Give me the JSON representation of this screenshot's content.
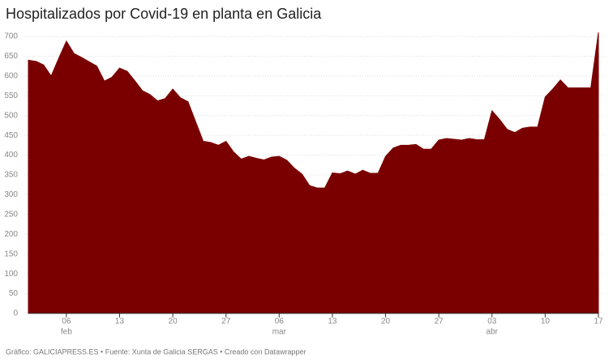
{
  "chart_data": {
    "type": "area",
    "title": "Hospitalizados por Covid-19 en planta en Galicia",
    "footer": "Gráfico: GALICIAPRESS.ES • Fuente: Xunta de Galicia SERGAS • Creado con Datawrapper",
    "color": "#7a0000",
    "categories": [
      null,
      null,
      null,
      null,
      null,
      "06",
      null,
      null,
      null,
      null,
      null,
      null,
      "13",
      null,
      null,
      null,
      null,
      null,
      null,
      "20",
      null,
      null,
      null,
      null,
      null,
      null,
      "27",
      null,
      null,
      null,
      null,
      null,
      null,
      "06",
      null,
      null,
      null,
      null,
      null,
      null,
      "13",
      null,
      null,
      null,
      null,
      null,
      null,
      "20",
      null,
      null,
      null,
      null,
      null,
      null,
      "27",
      null,
      null,
      null,
      null,
      null,
      null,
      "03",
      null,
      null,
      null,
      null,
      null,
      null,
      "10",
      null,
      null,
      null,
      null,
      null,
      null,
      "17"
    ],
    "months": [
      null,
      null,
      null,
      null,
      null,
      "feb",
      null,
      null,
      null,
      null,
      null,
      null,
      null,
      null,
      null,
      null,
      null,
      null,
      null,
      null,
      null,
      null,
      null,
      null,
      null,
      null,
      null,
      null,
      null,
      null,
      null,
      null,
      null,
      "mar",
      null,
      null,
      null,
      null,
      null,
      null,
      null,
      null,
      null,
      null,
      null,
      null,
      null,
      null,
      null,
      null,
      null,
      null,
      null,
      null,
      null,
      null,
      null,
      null,
      null,
      null,
      null,
      "abr",
      null,
      null,
      null,
      null,
      null,
      null,
      null,
      null,
      null,
      null,
      null,
      null,
      null,
      null
    ],
    "values": [
      640,
      637,
      628,
      600,
      645,
      688,
      657,
      647,
      636,
      625,
      587,
      597,
      620,
      612,
      588,
      563,
      553,
      537,
      543,
      567,
      545,
      535,
      485,
      435,
      432,
      425,
      435,
      408,
      390,
      397,
      392,
      388,
      395,
      397,
      387,
      367,
      352,
      323,
      317,
      317,
      355,
      353,
      360,
      352,
      362,
      354,
      354,
      397,
      418,
      425,
      425,
      427,
      415,
      415,
      438,
      442,
      440,
      438,
      442,
      439,
      439,
      512,
      490,
      465,
      457,
      468,
      471,
      471,
      547,
      567,
      590,
      570,
      570,
      570,
      570,
      710
    ],
    "ylim": [
      0,
      700
    ],
    "yticks": [
      0,
      50,
      100,
      150,
      200,
      250,
      300,
      350,
      400,
      450,
      500,
      550,
      600,
      650,
      700
    ],
    "grid": true
  }
}
